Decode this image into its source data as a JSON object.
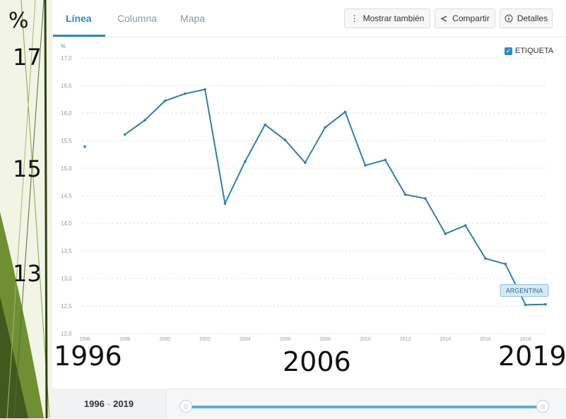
{
  "tabs": [
    {
      "label": "Línea",
      "active": true
    },
    {
      "label": "Columna",
      "active": false
    },
    {
      "label": "Mapa",
      "active": false
    }
  ],
  "toolbar": {
    "show_also": "Mostrar también",
    "share": "Compartir",
    "details": "Detalles"
  },
  "icons": {
    "show_also": "more-vertical-icon",
    "share": "share-icon",
    "details": "info-icon",
    "checkbox": "checkbox-checked-icon"
  },
  "label_toggle": {
    "label": "ETIQUETA",
    "checked": true
  },
  "overlay_labels": {
    "percent": "%",
    "y17": "17",
    "y15": "15",
    "y13": "13",
    "x1996": "1996",
    "x2006": "2006",
    "x2019": "2019"
  },
  "range": {
    "start": "1996",
    "sep": "-",
    "end": "2019",
    "slider_start_fraction": 0,
    "slider_end_fraction": 1
  },
  "colors": {
    "accent": "#2a8bc9",
    "line": "#2f7fb0",
    "slide_green": "#7fa23c"
  },
  "chart_data": {
    "type": "line",
    "ylabel": "%",
    "ylim": [
      12.0,
      17.0
    ],
    "yticks": [
      "12,0",
      "12,5",
      "13,0",
      "13,5",
      "14,0",
      "14,5",
      "15,0",
      "15,5",
      "16,0",
      "16,5",
      "17,0"
    ],
    "xlim": [
      1996,
      2019
    ],
    "xticks": [
      "1996",
      "1998",
      "2000",
      "2002",
      "2004",
      "2006",
      "2008",
      "2010",
      "2012",
      "2014",
      "2016",
      "2018"
    ],
    "grid": true,
    "series": [
      {
        "name": "ARGENTINA",
        "points": [
          {
            "x": 1996,
            "y": 15.39
          },
          {
            "x": 1998,
            "y": 15.61
          },
          {
            "x": 1999,
            "y": 15.87
          },
          {
            "x": 2000,
            "y": 16.22
          },
          {
            "x": 2001,
            "y": 16.35
          },
          {
            "x": 2002,
            "y": 16.43
          },
          {
            "x": 2003,
            "y": 14.36
          },
          {
            "x": 2004,
            "y": 15.12
          },
          {
            "x": 2005,
            "y": 15.79
          },
          {
            "x": 2006,
            "y": 15.51
          },
          {
            "x": 2007,
            "y": 15.1
          },
          {
            "x": 2008,
            "y": 15.74
          },
          {
            "x": 2009,
            "y": 16.02
          },
          {
            "x": 2010,
            "y": 15.05
          },
          {
            "x": 2011,
            "y": 15.15
          },
          {
            "x": 2012,
            "y": 14.52
          },
          {
            "x": 2013,
            "y": 14.45
          },
          {
            "x": 2014,
            "y": 13.81
          },
          {
            "x": 2015,
            "y": 13.96
          },
          {
            "x": 2016,
            "y": 13.36
          },
          {
            "x": 2017,
            "y": 13.26
          },
          {
            "x": 2018,
            "y": 12.52
          },
          {
            "x": 2019,
            "y": 12.53
          }
        ]
      }
    ]
  }
}
